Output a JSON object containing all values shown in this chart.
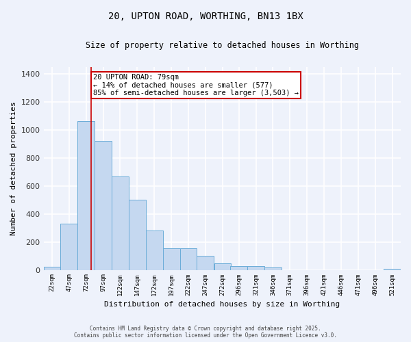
{
  "title_line1": "20, UPTON ROAD, WORTHING, BN13 1BX",
  "title_line2": "Size of property relative to detached houses in Worthing",
  "xlabel": "Distribution of detached houses by size in Worthing",
  "ylabel": "Number of detached properties",
  "bar_edges": [
    9.5,
    34.5,
    59.5,
    84.5,
    109.5,
    134.5,
    159.5,
    184.5,
    209.5,
    234.5,
    259.5,
    283.5,
    308.5,
    333.5,
    358.5,
    383.5,
    408.5,
    433.5,
    458.5,
    483.5,
    508.5,
    533.5
  ],
  "bar_centers": [
    22,
    47,
    72,
    97,
    122,
    147,
    172,
    197,
    222,
    247,
    272,
    296,
    321,
    346,
    371,
    396,
    421,
    446,
    471,
    496,
    521
  ],
  "bar_heights": [
    20,
    330,
    1065,
    920,
    665,
    500,
    280,
    155,
    155,
    100,
    45,
    25,
    25,
    15,
    0,
    0,
    0,
    0,
    0,
    0,
    10
  ],
  "bar_color": "#c5d8f0",
  "bar_edge_color": "#6aacd8",
  "property_line_x": 79,
  "property_line_color": "#cc0000",
  "annotation_text": "20 UPTON ROAD: 79sqm\n← 14% of detached houses are smaller (577)\n85% of semi-detached houses are larger (3,503) →",
  "annotation_box_color": "#ffffff",
  "annotation_box_edge_color": "#cc0000",
  "ylim": [
    0,
    1450
  ],
  "yticks": [
    0,
    200,
    400,
    600,
    800,
    1000,
    1200,
    1400
  ],
  "background_color": "#eef2fb",
  "grid_color": "#ffffff",
  "footer_line1": "Contains HM Land Registry data © Crown copyright and database right 2025.",
  "footer_line2": "Contains public sector information licensed under the Open Government Licence v3.0."
}
